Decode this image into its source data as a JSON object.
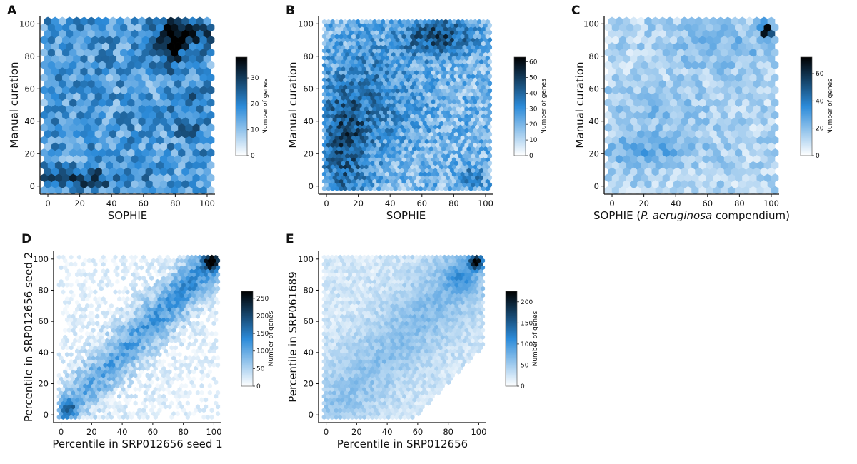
{
  "chart_data": [
    {
      "id": "A",
      "type": "heatmap",
      "subtype": "hexbin",
      "panel_letter": "A",
      "xlabel": "SOPHIE",
      "ylabel": "Manual curation",
      "xlim": [
        0,
        100
      ],
      "ylim": [
        0,
        100
      ],
      "xticks": [
        0,
        20,
        40,
        60,
        80,
        100
      ],
      "yticks": [
        0,
        20,
        40,
        60,
        80,
        100
      ],
      "colorbar": {
        "label": "Number of genes",
        "range": [
          0,
          38
        ],
        "ticks": [
          0,
          10,
          20,
          30
        ]
      },
      "density": {
        "base": 0.42,
        "noise": 0.22,
        "max_count": 38,
        "peaks": [
          {
            "x": 85,
            "y": 95,
            "amp": 0.5,
            "sx": 12,
            "sy": 7
          },
          {
            "x": 78,
            "y": 82,
            "amp": 0.35,
            "sx": 6,
            "sy": 10
          },
          {
            "x": 15,
            "y": 5,
            "amp": 0.42,
            "sx": 22,
            "sy": 4
          },
          {
            "x": 90,
            "y": 45,
            "amp": 0.18,
            "sx": 8,
            "sy": 14
          }
        ],
        "min_density": 0.05,
        "seed": 11,
        "gridsize": 22
      }
    },
    {
      "id": "B",
      "type": "heatmap",
      "subtype": "hexbin",
      "panel_letter": "B",
      "xlabel": "SOPHIE",
      "ylabel": "Manual curation",
      "xlim": [
        0,
        100
      ],
      "ylim": [
        0,
        100
      ],
      "xticks": [
        0,
        20,
        40,
        60,
        80,
        100
      ],
      "yticks": [
        0,
        20,
        40,
        60,
        80,
        100
      ],
      "colorbar": {
        "label": "Number of genes",
        "range": [
          0,
          63
        ],
        "ticks": [
          0,
          10,
          20,
          30,
          40,
          50,
          60
        ]
      },
      "density": {
        "base": 0.3,
        "noise": 0.2,
        "max_count": 63,
        "peaks": [
          {
            "x": 70,
            "y": 92,
            "amp": 0.45,
            "sx": 15,
            "sy": 8
          },
          {
            "x": 12,
            "y": 25,
            "amp": 0.38,
            "sx": 10,
            "sy": 25
          },
          {
            "x": 30,
            "y": 55,
            "amp": 0.2,
            "sx": 20,
            "sy": 25
          },
          {
            "x": 92,
            "y": 6,
            "amp": 0.2,
            "sx": 8,
            "sy": 5
          }
        ],
        "min_density": 0.03,
        "seed": 23,
        "gridsize": 38
      }
    },
    {
      "id": "C",
      "type": "heatmap",
      "subtype": "hexbin",
      "panel_letter": "C",
      "xlabel": "SOPHIE (P. aeruginosa compendium)",
      "xlabel_parts": [
        "SOPHIE (",
        "P. aeruginosa",
        " compendium)"
      ],
      "ylabel": "Manual curation",
      "xlim": [
        0,
        100
      ],
      "ylim": [
        0,
        100
      ],
      "xticks": [
        0,
        20,
        40,
        60,
        80,
        100
      ],
      "yticks": [
        0,
        20,
        40,
        60,
        80,
        100
      ],
      "colorbar": {
        "label": "Number of genes",
        "range": [
          0,
          72
        ],
        "ticks": [
          0,
          20,
          40,
          60
        ]
      },
      "density": {
        "base": 0.18,
        "noise": 0.12,
        "max_count": 72,
        "peaks": [
          {
            "x": 97,
            "y": 96,
            "amp": 0.9,
            "sx": 3,
            "sy": 3
          },
          {
            "x": 20,
            "y": 22,
            "amp": 0.2,
            "sx": 25,
            "sy": 6
          },
          {
            "x": 70,
            "y": 85,
            "amp": 0.15,
            "sx": 22,
            "sy": 10
          },
          {
            "x": 30,
            "y": 45,
            "amp": 0.1,
            "sx": 20,
            "sy": 10
          }
        ],
        "min_density": 0.03,
        "seed": 37,
        "gridsize": 22
      }
    },
    {
      "id": "D",
      "type": "heatmap",
      "subtype": "hexbin",
      "panel_letter": "D",
      "xlabel": "Percentile in SRP012656 seed 1",
      "ylabel": "Percentile in SRP012656 seed 2",
      "xlim": [
        0,
        100
      ],
      "ylim": [
        0,
        100
      ],
      "xticks": [
        0,
        20,
        40,
        60,
        80,
        100
      ],
      "yticks": [
        0,
        20,
        40,
        60,
        80,
        100
      ],
      "colorbar": {
        "label": "Number of genes",
        "range": [
          0,
          270
        ],
        "ticks": [
          0,
          50,
          100,
          150,
          200,
          250
        ]
      },
      "density": {
        "base": 0.0,
        "noise": 0.12,
        "max_count": 270,
        "diagonal": {
          "amp": 0.42,
          "width": 9,
          "falloff": 24
        },
        "peaks": [
          {
            "x": 98,
            "y": 98,
            "amp": 0.75,
            "sx": 3,
            "sy": 3
          },
          {
            "x": 5,
            "y": 4,
            "amp": 0.35,
            "sx": 4,
            "sy": 4
          }
        ],
        "min_density": 0.025,
        "seed": 41,
        "gridsize": 38
      }
    },
    {
      "id": "E",
      "type": "heatmap",
      "subtype": "hexbin",
      "panel_letter": "E",
      "xlabel": "Percentile in SRP012656",
      "ylabel": "Percentile in SRP061689",
      "xlim": [
        0,
        100
      ],
      "ylim": [
        0,
        100
      ],
      "xticks": [
        0,
        20,
        40,
        60,
        80,
        100
      ],
      "yticks": [
        0,
        20,
        40,
        60,
        80,
        100
      ],
      "colorbar": {
        "label": "Number of genes",
        "range": [
          0,
          225
        ],
        "ticks": [
          0,
          50,
          100,
          150,
          200
        ]
      },
      "density": {
        "base": 0.09,
        "noise": 0.07,
        "max_count": 225,
        "diagonal": {
          "amp": 0.14,
          "width": 16,
          "falloff": 26
        },
        "peaks": [
          {
            "x": 98,
            "y": 98,
            "amp": 0.8,
            "sx": 3,
            "sy": 3
          },
          {
            "x": 88,
            "y": 88,
            "amp": 0.2,
            "sx": 6,
            "sy": 6
          }
        ],
        "cut_lower_right": true,
        "min_density": 0.02,
        "seed": 53,
        "gridsize": 38
      }
    }
  ],
  "colors": {
    "scale": [
      "#ffffff",
      "#2c8bd9",
      "#000000"
    ],
    "axis": "#111111"
  }
}
